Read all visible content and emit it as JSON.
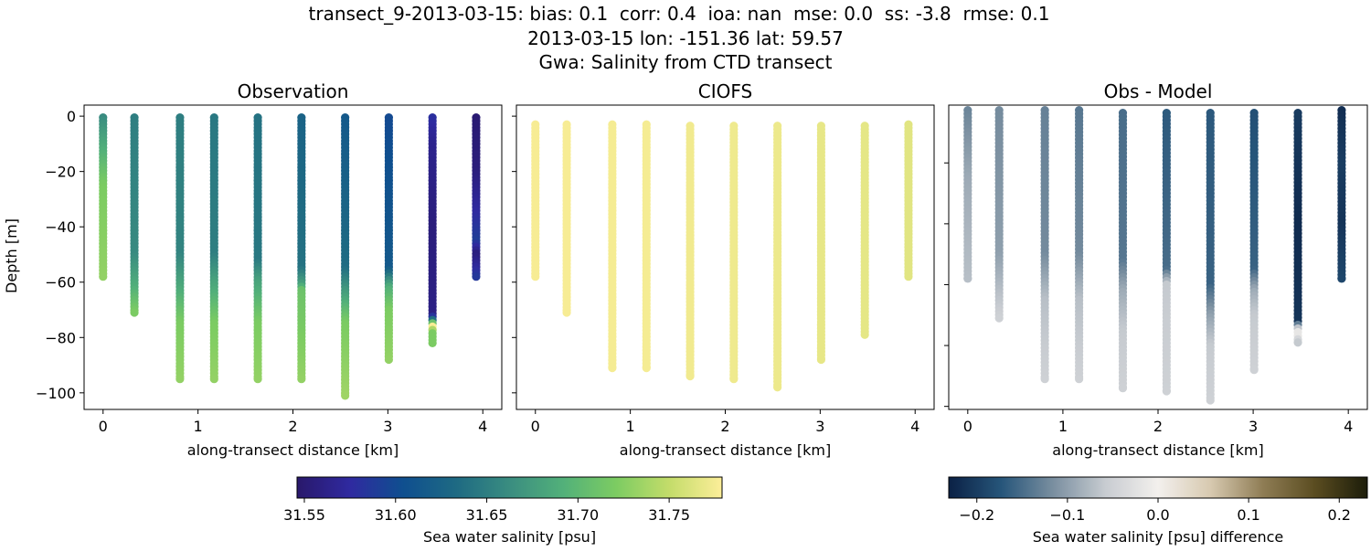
{
  "figure": {
    "title_lines": [
      "transect_9-2013-03-15: bias: 0.1  corr: 0.4  ioa: nan  mse: 0.0  ss: -3.8  rmse: 0.1",
      "2013-03-15 lon: -151.36 lat: 59.57",
      "Gwa: Salinity from CTD transect"
    ]
  },
  "chart_data": [
    {
      "type": "scatter",
      "title": "Observation",
      "xlabel": "along-transect distance [km]",
      "ylabel": "Depth [m]",
      "xlim": [
        -0.2,
        4.2
      ],
      "ylim": [
        4,
        -106
      ],
      "xticks": [
        "0",
        "1",
        "2",
        "3",
        "4"
      ],
      "yticks": [
        "0",
        "−20",
        "−40",
        "−60",
        "−80",
        "−100"
      ],
      "colormap": "haline",
      "stations": [
        {
          "x": 0.0,
          "top": -0.5,
          "bottom": -58,
          "depths": [
            0,
            -8,
            -25,
            -58
          ],
          "values": [
            31.66,
            31.68,
            31.72,
            31.73
          ]
        },
        {
          "x": 0.33,
          "top": -0.5,
          "bottom": -71,
          "depths": [
            0,
            -50,
            -62,
            -71
          ],
          "values": [
            31.65,
            31.66,
            31.69,
            31.72
          ]
        },
        {
          "x": 0.81,
          "top": -0.5,
          "bottom": -95,
          "depths": [
            0,
            -50,
            -60,
            -75,
            -95
          ],
          "values": [
            31.65,
            31.655,
            31.68,
            31.72,
            31.73
          ]
        },
        {
          "x": 1.17,
          "top": -0.5,
          "bottom": -95,
          "depths": [
            0,
            -50,
            -60,
            -75,
            -95
          ],
          "values": [
            31.645,
            31.65,
            31.68,
            31.72,
            31.73
          ]
        },
        {
          "x": 1.63,
          "top": -0.5,
          "bottom": -95,
          "depths": [
            0,
            -52,
            -60,
            -75,
            -95
          ],
          "values": [
            31.64,
            31.645,
            31.68,
            31.72,
            31.73
          ]
        },
        {
          "x": 2.09,
          "top": -0.5,
          "bottom": -95,
          "depths": [
            0,
            -55,
            -61,
            -63,
            -95
          ],
          "values": [
            31.625,
            31.64,
            31.68,
            31.71,
            31.73
          ]
        },
        {
          "x": 2.55,
          "top": -0.5,
          "bottom": -101,
          "depths": [
            0,
            -55,
            -65,
            -75,
            -101
          ],
          "values": [
            31.615,
            31.635,
            31.68,
            31.72,
            31.735
          ]
        },
        {
          "x": 3.01,
          "top": -0.5,
          "bottom": -88,
          "depths": [
            0,
            -55,
            -62,
            -70,
            -88
          ],
          "values": [
            31.6,
            31.615,
            31.69,
            31.72,
            31.73
          ]
        },
        {
          "x": 3.47,
          "top": -0.5,
          "bottom": -82,
          "depths": [
            0,
            -10,
            -40,
            -72,
            -74,
            -76,
            -78,
            -82
          ],
          "values": [
            31.58,
            31.565,
            31.555,
            31.56,
            31.65,
            31.78,
            31.72,
            31.72
          ]
        },
        {
          "x": 3.93,
          "top": -0.5,
          "bottom": -58,
          "depths": [
            0,
            -20,
            -35,
            -45,
            -50,
            -58
          ],
          "values": [
            31.55,
            31.555,
            31.575,
            31.59,
            31.555,
            31.585
          ]
        }
      ]
    },
    {
      "type": "scatter",
      "title": "CIOFS",
      "xlabel": "along-transect distance [km]",
      "xlim": [
        -0.2,
        4.2
      ],
      "ylim": [
        4,
        -106
      ],
      "xticks": [
        "0",
        "1",
        "2",
        "3",
        "4"
      ],
      "colormap": "haline",
      "stations": [
        {
          "x": 0.0,
          "top": -3,
          "bottom": -58,
          "depths": [
            0,
            -58
          ],
          "values": [
            31.776,
            31.776
          ]
        },
        {
          "x": 0.33,
          "top": -3,
          "bottom": -71,
          "depths": [
            0,
            -71
          ],
          "values": [
            31.776,
            31.776
          ]
        },
        {
          "x": 0.81,
          "top": -3,
          "bottom": -91,
          "depths": [
            0,
            -91
          ],
          "values": [
            31.775,
            31.775
          ]
        },
        {
          "x": 1.17,
          "top": -3,
          "bottom": -91,
          "depths": [
            0,
            -91
          ],
          "values": [
            31.775,
            31.775
          ]
        },
        {
          "x": 1.63,
          "top": -3.5,
          "bottom": -94,
          "depths": [
            0,
            -94
          ],
          "values": [
            31.773,
            31.773
          ]
        },
        {
          "x": 2.09,
          "top": -3.5,
          "bottom": -95,
          "depths": [
            0,
            -95
          ],
          "values": [
            31.772,
            31.772
          ]
        },
        {
          "x": 2.55,
          "top": -3.5,
          "bottom": -98,
          "depths": [
            0,
            -98
          ],
          "values": [
            31.771,
            31.771
          ]
        },
        {
          "x": 3.01,
          "top": -3.5,
          "bottom": -88,
          "depths": [
            0,
            -88
          ],
          "values": [
            31.768,
            31.768
          ]
        },
        {
          "x": 3.47,
          "top": -3.5,
          "bottom": -79,
          "depths": [
            0,
            -79
          ],
          "values": [
            31.767,
            31.767
          ]
        },
        {
          "x": 3.93,
          "top": -3,
          "bottom": -58,
          "depths": [
            0,
            -58
          ],
          "values": [
            31.765,
            31.765
          ]
        }
      ]
    },
    {
      "type": "scatter",
      "title": "Obs - Model",
      "xlabel": "along-transect distance [km]",
      "xlim": [
        -0.2,
        4.2
      ],
      "ylim": [
        -1,
        -101
      ],
      "xticks": [
        "0",
        "1",
        "2",
        "3",
        "4"
      ],
      "colormap": "diff",
      "stations": [
        {
          "x": 0.0,
          "top": -2.7,
          "bottom": -58,
          "depths": [
            0,
            -25,
            -58
          ],
          "values": [
            -0.13,
            -0.09,
            -0.07
          ]
        },
        {
          "x": 0.33,
          "top": -2.7,
          "bottom": -71,
          "depths": [
            0,
            -50,
            -71
          ],
          "values": [
            -0.12,
            -0.1,
            -0.05
          ]
        },
        {
          "x": 0.81,
          "top": -2.7,
          "bottom": -91,
          "depths": [
            0,
            -50,
            -65,
            -91
          ],
          "values": [
            -0.13,
            -0.12,
            -0.07,
            -0.05
          ]
        },
        {
          "x": 1.17,
          "top": -2.7,
          "bottom": -91,
          "depths": [
            0,
            -50,
            -65,
            -91
          ],
          "values": [
            -0.14,
            -0.12,
            -0.07,
            -0.05
          ]
        },
        {
          "x": 1.63,
          "top": -3.6,
          "bottom": -94,
          "depths": [
            0,
            -52,
            -62,
            -75,
            -94
          ],
          "values": [
            -0.15,
            -0.14,
            -0.09,
            -0.06,
            -0.05
          ]
        },
        {
          "x": 2.09,
          "top": -3.6,
          "bottom": -95,
          "depths": [
            0,
            -55,
            -60,
            -95
          ],
          "values": [
            -0.17,
            -0.15,
            -0.06,
            -0.05
          ]
        },
        {
          "x": 2.55,
          "top": -3.6,
          "bottom": -98,
          "depths": [
            0,
            -60,
            -70,
            -80,
            -98
          ],
          "values": [
            -0.17,
            -0.16,
            -0.1,
            -0.06,
            -0.05
          ]
        },
        {
          "x": 3.01,
          "top": -3.6,
          "bottom": -88,
          "depths": [
            0,
            -55,
            -62,
            -70,
            -88
          ],
          "values": [
            -0.18,
            -0.16,
            -0.09,
            -0.06,
            -0.05
          ]
        },
        {
          "x": 3.47,
          "top": -3.6,
          "bottom": -79,
          "depths": [
            0,
            -40,
            -72,
            -74,
            -76,
            -79
          ],
          "values": [
            -0.2,
            -0.22,
            -0.21,
            -0.08,
            0.0,
            -0.06
          ]
        },
        {
          "x": 3.93,
          "top": -2.7,
          "bottom": -58,
          "depths": [
            0,
            -20,
            -40,
            -58
          ],
          "values": [
            -0.22,
            -0.2,
            -0.21,
            -0.19
          ]
        }
      ]
    }
  ],
  "colorbars": [
    {
      "label": "Sea water salinity [psu]",
      "range": [
        31.546,
        31.779
      ],
      "ticks": [
        31.55,
        31.6,
        31.65,
        31.7,
        31.75
      ],
      "tick_labels": [
        "31.55",
        "31.60",
        "31.65",
        "31.70",
        "31.75"
      ],
      "colormap": "haline"
    },
    {
      "label": "Sea water salinity [psu] difference",
      "range": [
        -0.231,
        0.231
      ],
      "ticks": [
        -0.2,
        -0.1,
        0.0,
        0.1,
        0.2
      ],
      "tick_labels": [
        "−0.2",
        "−0.1",
        "0.0",
        "0.1",
        "0.2"
      ],
      "colormap": "diff"
    }
  ],
  "colormaps": {
    "haline": [
      "#29186b",
      "#2f2aa0",
      "#0f4f8f",
      "#1e6a83",
      "#3a8d80",
      "#52b07a",
      "#7ccc62",
      "#c3dc6a",
      "#fdee99"
    ],
    "diff": [
      "#0b2145",
      "#26557a",
      "#7a8fa0",
      "#c8ccd1",
      "#f3f0ed",
      "#d7c9b0",
      "#8f7d55",
      "#5a4c20",
      "#1c1d0a"
    ]
  }
}
